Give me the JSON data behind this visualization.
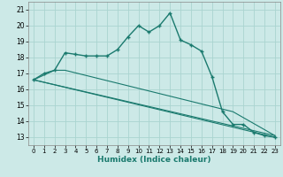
{
  "xlabel": "Humidex (Indice chaleur)",
  "bg_color": "#cce9e7",
  "grid_color": "#aad4d0",
  "line_color": "#1a7a6e",
  "xlim": [
    -0.5,
    23.5
  ],
  "ylim": [
    12.5,
    21.5
  ],
  "xticks": [
    0,
    1,
    2,
    3,
    4,
    5,
    6,
    7,
    8,
    9,
    10,
    11,
    12,
    13,
    14,
    15,
    16,
    17,
    18,
    19,
    20,
    21,
    22,
    23
  ],
  "yticks": [
    13,
    14,
    15,
    16,
    17,
    18,
    19,
    20,
    21
  ],
  "line1_x": [
    0,
    1,
    2,
    3,
    4,
    5,
    6,
    7,
    8,
    9,
    10,
    11,
    12,
    13,
    14,
    15,
    16,
    17,
    18,
    19,
    20,
    21,
    22,
    23
  ],
  "line1_y": [
    16.6,
    17.0,
    17.2,
    18.3,
    18.2,
    18.1,
    18.1,
    18.1,
    18.5,
    19.3,
    20.0,
    19.6,
    20.0,
    20.8,
    19.1,
    18.8,
    18.4,
    16.8,
    14.6,
    13.8,
    13.8,
    13.3,
    13.1,
    13.0
  ],
  "line2_x": [
    0,
    23
  ],
  "line2_y": [
    16.6,
    13.1
  ],
  "line3_x": [
    0,
    23
  ],
  "line3_y": [
    16.6,
    13.0
  ],
  "line4_x": [
    0,
    2,
    3,
    19,
    23
  ],
  "line4_y": [
    16.6,
    17.2,
    17.2,
    14.6,
    13.1
  ]
}
